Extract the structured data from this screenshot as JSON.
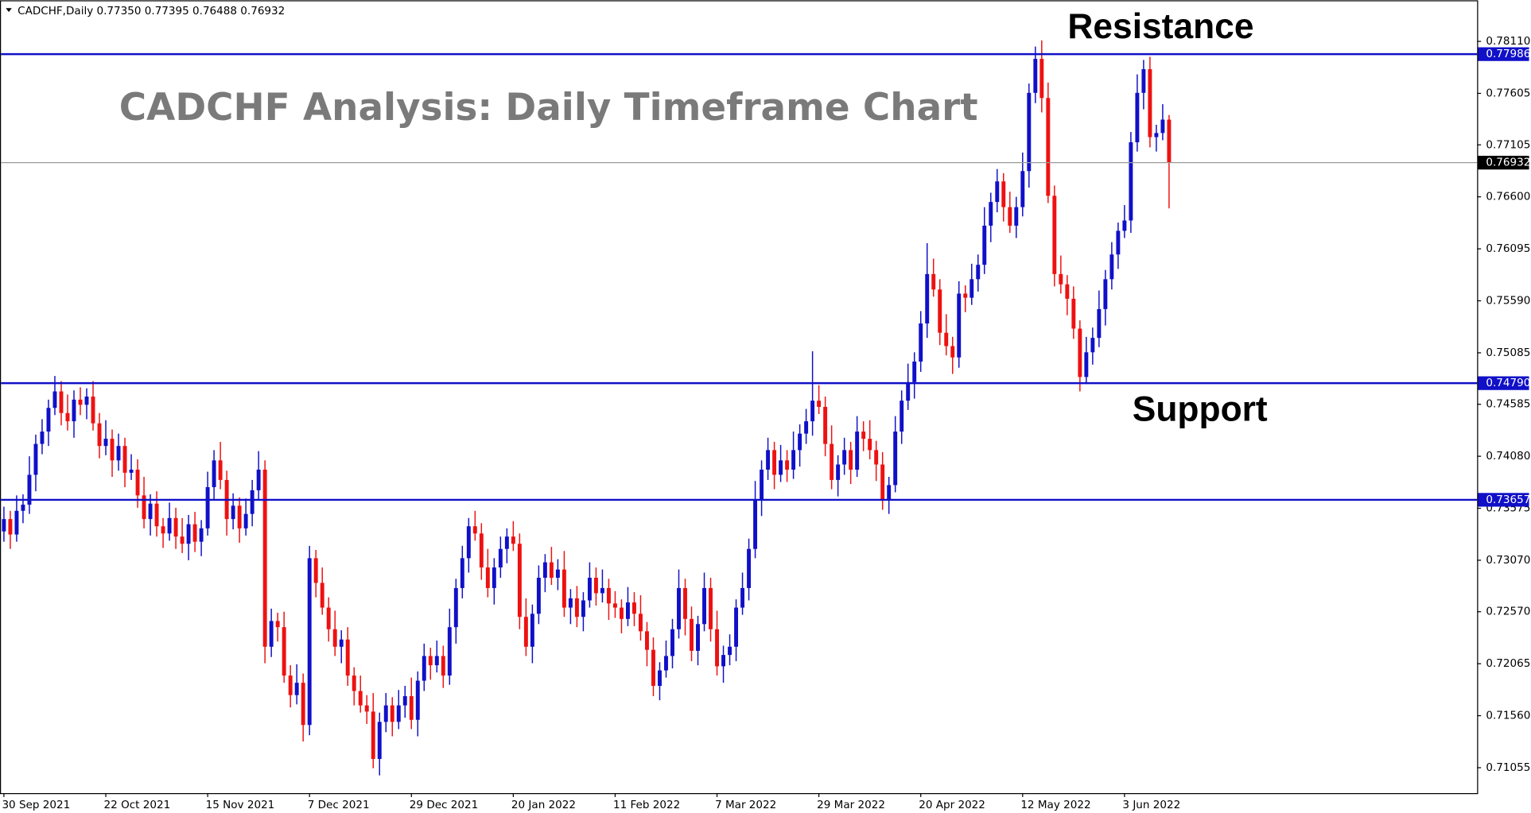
{
  "chart_data": {
    "type": "candlestick",
    "header": "CADCHF,Daily  0.77350 0.77395 0.76488 0.76932",
    "title": "CADCHF Analysis: Daily Timeframe Chart",
    "annotations": [
      "Resistance",
      "Support"
    ],
    "up_color": "#1010c8",
    "down_color": "#ee1111",
    "ylim": [
      0.70808,
      0.78509
    ],
    "yticks": [
      {
        "value": 0.7811,
        "label": "0.78110"
      },
      {
        "value": 0.77605,
        "label": "0.77605"
      },
      {
        "value": 0.77105,
        "label": "0.77105"
      },
      {
        "value": 0.766,
        "label": "0.76600"
      },
      {
        "value": 0.76095,
        "label": "0.76095"
      },
      {
        "value": 0.7559,
        "label": "0.75590"
      },
      {
        "value": 0.75085,
        "label": "0.75085"
      },
      {
        "value": 0.74585,
        "label": "0.74585"
      },
      {
        "value": 0.7408,
        "label": "0.74080"
      },
      {
        "value": 0.73575,
        "label": "0.73575"
      },
      {
        "value": 0.7307,
        "label": "0.73070"
      },
      {
        "value": 0.7257,
        "label": "0.72570"
      },
      {
        "value": 0.72065,
        "label": "0.72065"
      },
      {
        "value": 0.7156,
        "label": "0.71560"
      },
      {
        "value": 0.71055,
        "label": "0.71055"
      }
    ],
    "levels": [
      {
        "value": 0.77986,
        "color": "#1010c8"
      },
      {
        "value": 0.7479,
        "label": "0.74790",
        "color": "#1010c8"
      },
      {
        "value": 0.73657,
        "color": "#1010c8"
      },
      {
        "value": 0.76932,
        "color": "#000000"
      }
    ],
    "categories": [
      "30 Sep 2021",
      null,
      null,
      null,
      null,
      null,
      null,
      null,
      null,
      null,
      null,
      null,
      null,
      null,
      null,
      null,
      "22 Oct 2021",
      null,
      null,
      null,
      null,
      null,
      null,
      null,
      null,
      null,
      null,
      null,
      null,
      null,
      null,
      null,
      "15 Nov 2021",
      null,
      null,
      null,
      null,
      null,
      null,
      null,
      null,
      null,
      null,
      null,
      null,
      null,
      null,
      null,
      "7 Dec 2021",
      null,
      null,
      null,
      null,
      null,
      null,
      null,
      null,
      null,
      null,
      null,
      null,
      null,
      null,
      null,
      "29 Dec 2021",
      null,
      null,
      null,
      null,
      null,
      null,
      null,
      null,
      null,
      null,
      null,
      null,
      null,
      null,
      null,
      "20 Jan 2022",
      null,
      null,
      null,
      null,
      null,
      null,
      null,
      null,
      null,
      null,
      null,
      null,
      null,
      null,
      null,
      "11 Feb 2022",
      null,
      null,
      null,
      null,
      null,
      null,
      null,
      null,
      null,
      null,
      null,
      null,
      null,
      null,
      null,
      "7 Mar 2022",
      null,
      null,
      null,
      null,
      null,
      null,
      null,
      null,
      null,
      null,
      null,
      null,
      null,
      null,
      null,
      "29 Mar 2022",
      null,
      null,
      null,
      null,
      null,
      null,
      null,
      null,
      null,
      null,
      null,
      null,
      null,
      null,
      null,
      "20 Apr 2022",
      null,
      null,
      null,
      null,
      null,
      null,
      null,
      null,
      null,
      null,
      null,
      null,
      null,
      null,
      null,
      "12 May 2022",
      null,
      null,
      null,
      null,
      null,
      null,
      null,
      null,
      null,
      null,
      null,
      null,
      null,
      null,
      null,
      "3 Jun 2022",
      null,
      null,
      null,
      null,
      null,
      null,
      null
    ],
    "candles": [
      [
        0.7335,
        0.7359,
        0.7325,
        0.7347
      ],
      [
        0.7347,
        0.7355,
        0.7318,
        0.7332
      ],
      [
        0.7332,
        0.737,
        0.7325,
        0.7355
      ],
      [
        0.7355,
        0.7371,
        0.7343,
        0.7361
      ],
      [
        0.7361,
        0.7408,
        0.7352,
        0.739
      ],
      [
        0.739,
        0.7429,
        0.7374,
        0.742
      ],
      [
        0.742,
        0.7444,
        0.741,
        0.7432
      ],
      [
        0.7432,
        0.7463,
        0.7418,
        0.7455
      ],
      [
        0.7455,
        0.7486,
        0.7448,
        0.7471
      ],
      [
        0.7471,
        0.7481,
        0.7438,
        0.745
      ],
      [
        0.745,
        0.7468,
        0.7433,
        0.7442
      ],
      [
        0.7442,
        0.7472,
        0.7426,
        0.7463
      ],
      [
        0.7463,
        0.7475,
        0.7448,
        0.7458
      ],
      [
        0.7458,
        0.7474,
        0.7444,
        0.7466
      ],
      [
        0.7466,
        0.7481,
        0.7433,
        0.744
      ],
      [
        0.744,
        0.745,
        0.7406,
        0.7418
      ],
      [
        0.7418,
        0.7443,
        0.7409,
        0.7425
      ],
      [
        0.7425,
        0.7434,
        0.7388,
        0.7404
      ],
      [
        0.7404,
        0.743,
        0.7394,
        0.7418
      ],
      [
        0.7418,
        0.7426,
        0.7378,
        0.7392
      ],
      [
        0.7392,
        0.741,
        0.7385,
        0.7395
      ],
      [
        0.7395,
        0.7405,
        0.7358,
        0.737
      ],
      [
        0.737,
        0.7388,
        0.7338,
        0.7347
      ],
      [
        0.7347,
        0.7371,
        0.7331,
        0.7362
      ],
      [
        0.7362,
        0.7374,
        0.733,
        0.734
      ],
      [
        0.734,
        0.7348,
        0.7319,
        0.7333
      ],
      [
        0.7333,
        0.7363,
        0.7326,
        0.7348
      ],
      [
        0.7348,
        0.7358,
        0.7318,
        0.733
      ],
      [
        0.733,
        0.7348,
        0.7314,
        0.7323
      ],
      [
        0.7323,
        0.7351,
        0.7307,
        0.7342
      ],
      [
        0.7342,
        0.7354,
        0.7315,
        0.7325
      ],
      [
        0.7325,
        0.7346,
        0.7311,
        0.7338
      ],
      [
        0.7338,
        0.7393,
        0.7331,
        0.7378
      ],
      [
        0.7378,
        0.7414,
        0.7366,
        0.7404
      ],
      [
        0.7404,
        0.7422,
        0.7376,
        0.7385
      ],
      [
        0.7385,
        0.7394,
        0.7331,
        0.7347
      ],
      [
        0.7347,
        0.7372,
        0.7337,
        0.736
      ],
      [
        0.736,
        0.7368,
        0.7324,
        0.7338
      ],
      [
        0.7338,
        0.7367,
        0.7331,
        0.7352
      ],
      [
        0.7352,
        0.7385,
        0.734,
        0.7375
      ],
      [
        0.7375,
        0.7413,
        0.7366,
        0.7395
      ],
      [
        0.7395,
        0.7404,
        0.7207,
        0.7223
      ],
      [
        0.7223,
        0.726,
        0.7213,
        0.7248
      ],
      [
        0.7248,
        0.7256,
        0.7228,
        0.7242
      ],
      [
        0.7242,
        0.7257,
        0.7188,
        0.7195
      ],
      [
        0.7195,
        0.7205,
        0.7164,
        0.7176
      ],
      [
        0.7176,
        0.7206,
        0.7167,
        0.7188
      ],
      [
        0.7188,
        0.7197,
        0.7131,
        0.7147
      ],
      [
        0.7147,
        0.7321,
        0.7137,
        0.7309
      ],
      [
        0.7309,
        0.7317,
        0.7271,
        0.7285
      ],
      [
        0.7285,
        0.73,
        0.7254,
        0.7261
      ],
      [
        0.7261,
        0.7271,
        0.7228,
        0.724
      ],
      [
        0.724,
        0.7258,
        0.7214,
        0.7223
      ],
      [
        0.7223,
        0.7239,
        0.7207,
        0.723
      ],
      [
        0.723,
        0.7242,
        0.7185,
        0.7195
      ],
      [
        0.7195,
        0.7203,
        0.7166,
        0.718
      ],
      [
        0.718,
        0.7195,
        0.7159,
        0.7166
      ],
      [
        0.7166,
        0.7176,
        0.7148,
        0.716
      ],
      [
        0.716,
        0.7178,
        0.7105,
        0.7114
      ],
      [
        0.7114,
        0.7159,
        0.7098,
        0.715
      ],
      [
        0.715,
        0.7178,
        0.714,
        0.7166
      ],
      [
        0.7166,
        0.7174,
        0.7136,
        0.715
      ],
      [
        0.715,
        0.7181,
        0.7143,
        0.7166
      ],
      [
        0.7166,
        0.7185,
        0.7154,
        0.7175
      ],
      [
        0.7175,
        0.7193,
        0.7143,
        0.7152
      ],
      [
        0.7152,
        0.7199,
        0.7136,
        0.719
      ],
      [
        0.719,
        0.7226,
        0.718,
        0.7214
      ],
      [
        0.7214,
        0.7222,
        0.7191,
        0.7205
      ],
      [
        0.7205,
        0.7229,
        0.7198,
        0.7214
      ],
      [
        0.7214,
        0.7224,
        0.7183,
        0.7195
      ],
      [
        0.7195,
        0.726,
        0.7186,
        0.7242
      ],
      [
        0.7242,
        0.7289,
        0.7226,
        0.728
      ],
      [
        0.728,
        0.7321,
        0.727,
        0.7309
      ],
      [
        0.7309,
        0.7348,
        0.7295,
        0.734
      ],
      [
        0.734,
        0.7355,
        0.7326,
        0.7333
      ],
      [
        0.7333,
        0.7343,
        0.7288,
        0.73
      ],
      [
        0.73,
        0.7318,
        0.7271,
        0.728
      ],
      [
        0.728,
        0.7309,
        0.7264,
        0.73
      ],
      [
        0.73,
        0.733,
        0.729,
        0.7318
      ],
      [
        0.7318,
        0.7338,
        0.7304,
        0.733
      ],
      [
        0.733,
        0.7345,
        0.7316,
        0.7323
      ],
      [
        0.7323,
        0.7333,
        0.724,
        0.7252
      ],
      [
        0.7252,
        0.727,
        0.7214,
        0.7223
      ],
      [
        0.7223,
        0.7264,
        0.7207,
        0.7255
      ],
      [
        0.7255,
        0.7302,
        0.7245,
        0.729
      ],
      [
        0.729,
        0.7313,
        0.7276,
        0.7305
      ],
      [
        0.7305,
        0.732,
        0.7283,
        0.729
      ],
      [
        0.729,
        0.7308,
        0.7278,
        0.7298
      ],
      [
        0.7298,
        0.7316,
        0.7252,
        0.7261
      ],
      [
        0.7261,
        0.7279,
        0.7245,
        0.727
      ],
      [
        0.727,
        0.7282,
        0.7242,
        0.7252
      ],
      [
        0.7252,
        0.7276,
        0.7238,
        0.7268
      ],
      [
        0.7268,
        0.7305,
        0.7261,
        0.729
      ],
      [
        0.729,
        0.73,
        0.7263,
        0.7275
      ],
      [
        0.7275,
        0.7298,
        0.7266,
        0.728
      ],
      [
        0.728,
        0.7289,
        0.7249,
        0.7265
      ],
      [
        0.7265,
        0.7277,
        0.7251,
        0.7261
      ],
      [
        0.7261,
        0.7269,
        0.7236,
        0.725
      ],
      [
        0.725,
        0.7281,
        0.7243,
        0.7266
      ],
      [
        0.7266,
        0.7276,
        0.7243,
        0.7255
      ],
      [
        0.7255,
        0.7273,
        0.7229,
        0.7238
      ],
      [
        0.7238,
        0.7247,
        0.7204,
        0.722
      ],
      [
        0.722,
        0.7232,
        0.7175,
        0.7185
      ],
      [
        0.7185,
        0.7208,
        0.7171,
        0.72
      ],
      [
        0.72,
        0.7229,
        0.7193,
        0.7214
      ],
      [
        0.7214,
        0.725,
        0.7202,
        0.724
      ],
      [
        0.724,
        0.7298,
        0.7231,
        0.728
      ],
      [
        0.728,
        0.7289,
        0.7234,
        0.725
      ],
      [
        0.725,
        0.7262,
        0.7209,
        0.7219
      ],
      [
        0.7219,
        0.7253,
        0.7205,
        0.7245
      ],
      [
        0.7245,
        0.7295,
        0.7238,
        0.728
      ],
      [
        0.728,
        0.729,
        0.7228,
        0.724
      ],
      [
        0.724,
        0.7258,
        0.7195,
        0.7204
      ],
      [
        0.7204,
        0.7224,
        0.7188,
        0.7215
      ],
      [
        0.7215,
        0.7235,
        0.7205,
        0.7223
      ],
      [
        0.7223,
        0.7269,
        0.7209,
        0.7261
      ],
      [
        0.7261,
        0.7295,
        0.7254,
        0.728
      ],
      [
        0.728,
        0.7328,
        0.7268,
        0.7318
      ],
      [
        0.7318,
        0.7384,
        0.7309,
        0.7366
      ],
      [
        0.7366,
        0.7404,
        0.735,
        0.7395
      ],
      [
        0.7395,
        0.7426,
        0.7385,
        0.7414
      ],
      [
        0.7414,
        0.7422,
        0.7376,
        0.739
      ],
      [
        0.739,
        0.7419,
        0.7383,
        0.7404
      ],
      [
        0.7404,
        0.7414,
        0.7383,
        0.7395
      ],
      [
        0.7395,
        0.7432,
        0.7386,
        0.7414
      ],
      [
        0.7414,
        0.7439,
        0.7398,
        0.743
      ],
      [
        0.743,
        0.7454,
        0.742,
        0.7442
      ],
      [
        0.7442,
        0.751,
        0.7428,
        0.7462
      ],
      [
        0.7462,
        0.7477,
        0.7449,
        0.7456
      ],
      [
        0.7456,
        0.7466,
        0.7408,
        0.742
      ],
      [
        0.742,
        0.7438,
        0.7376,
        0.7385
      ],
      [
        0.7385,
        0.7409,
        0.7369,
        0.74
      ],
      [
        0.74,
        0.7426,
        0.739,
        0.7414
      ],
      [
        0.7414,
        0.7422,
        0.7381,
        0.7395
      ],
      [
        0.7395,
        0.7447,
        0.7388,
        0.7432
      ],
      [
        0.7432,
        0.7442,
        0.7413,
        0.7425
      ],
      [
        0.7425,
        0.7443,
        0.7405,
        0.7414
      ],
      [
        0.7414,
        0.7423,
        0.7384,
        0.74
      ],
      [
        0.74,
        0.7412,
        0.7356,
        0.7366
      ],
      [
        0.7366,
        0.7388,
        0.7352,
        0.738
      ],
      [
        0.738,
        0.7447,
        0.7373,
        0.7432
      ],
      [
        0.7432,
        0.7472,
        0.742,
        0.7462
      ],
      [
        0.7462,
        0.7498,
        0.7453,
        0.748
      ],
      [
        0.748,
        0.7509,
        0.7464,
        0.75
      ],
      [
        0.75,
        0.7549,
        0.749,
        0.7537
      ],
      [
        0.7537,
        0.7615,
        0.7523,
        0.7585
      ],
      [
        0.7585,
        0.76,
        0.7563,
        0.757
      ],
      [
        0.757,
        0.758,
        0.7516,
        0.7528
      ],
      [
        0.7528,
        0.7546,
        0.7506,
        0.7515
      ],
      [
        0.7515,
        0.7524,
        0.7488,
        0.7504
      ],
      [
        0.7504,
        0.7578,
        0.7494,
        0.7566
      ],
      [
        0.7566,
        0.7574,
        0.7548,
        0.7562
      ],
      [
        0.7562,
        0.7595,
        0.7555,
        0.758
      ],
      [
        0.758,
        0.7604,
        0.7568,
        0.7594
      ],
      [
        0.7594,
        0.765,
        0.7585,
        0.7632
      ],
      [
        0.7632,
        0.7664,
        0.7616,
        0.7655
      ],
      [
        0.7655,
        0.7687,
        0.7645,
        0.7675
      ],
      [
        0.7675,
        0.7683,
        0.7636,
        0.765
      ],
      [
        0.765,
        0.7665,
        0.7625,
        0.7632
      ],
      [
        0.7632,
        0.766,
        0.762,
        0.765
      ],
      [
        0.765,
        0.7703,
        0.7641,
        0.7685
      ],
      [
        0.7685,
        0.777,
        0.7669,
        0.7761
      ],
      [
        0.7761,
        0.7806,
        0.7751,
        0.7794
      ],
      [
        0.7794,
        0.7812,
        0.7742,
        0.7756
      ],
      [
        0.7756,
        0.7771,
        0.7654,
        0.7661
      ],
      [
        0.7661,
        0.7671,
        0.7573,
        0.7585
      ],
      [
        0.7585,
        0.7603,
        0.7566,
        0.7575
      ],
      [
        0.7575,
        0.7584,
        0.7545,
        0.7561
      ],
      [
        0.7561,
        0.7573,
        0.7522,
        0.7532
      ],
      [
        0.7532,
        0.754,
        0.7471,
        0.7485
      ],
      [
        0.7485,
        0.7524,
        0.7478,
        0.7509
      ],
      [
        0.7509,
        0.7533,
        0.7497,
        0.7523
      ],
      [
        0.7523,
        0.7569,
        0.7514,
        0.7551
      ],
      [
        0.7551,
        0.7589,
        0.7535,
        0.758
      ],
      [
        0.758,
        0.7616,
        0.757,
        0.7604
      ],
      [
        0.7604,
        0.7635,
        0.759,
        0.7627
      ],
      [
        0.7627,
        0.7652,
        0.762,
        0.7637
      ],
      [
        0.7637,
        0.7723,
        0.7625,
        0.7713
      ],
      [
        0.7713,
        0.7779,
        0.7704,
        0.7761
      ],
      [
        0.7761,
        0.7793,
        0.7745,
        0.7784
      ],
      [
        0.7784,
        0.7796,
        0.7708,
        0.7718
      ],
      [
        0.7718,
        0.773,
        0.7704,
        0.7722
      ],
      [
        0.7722,
        0.775,
        0.7715,
        0.7735
      ],
      [
        0.7735,
        0.77395,
        0.76488,
        0.76932
      ]
    ]
  }
}
